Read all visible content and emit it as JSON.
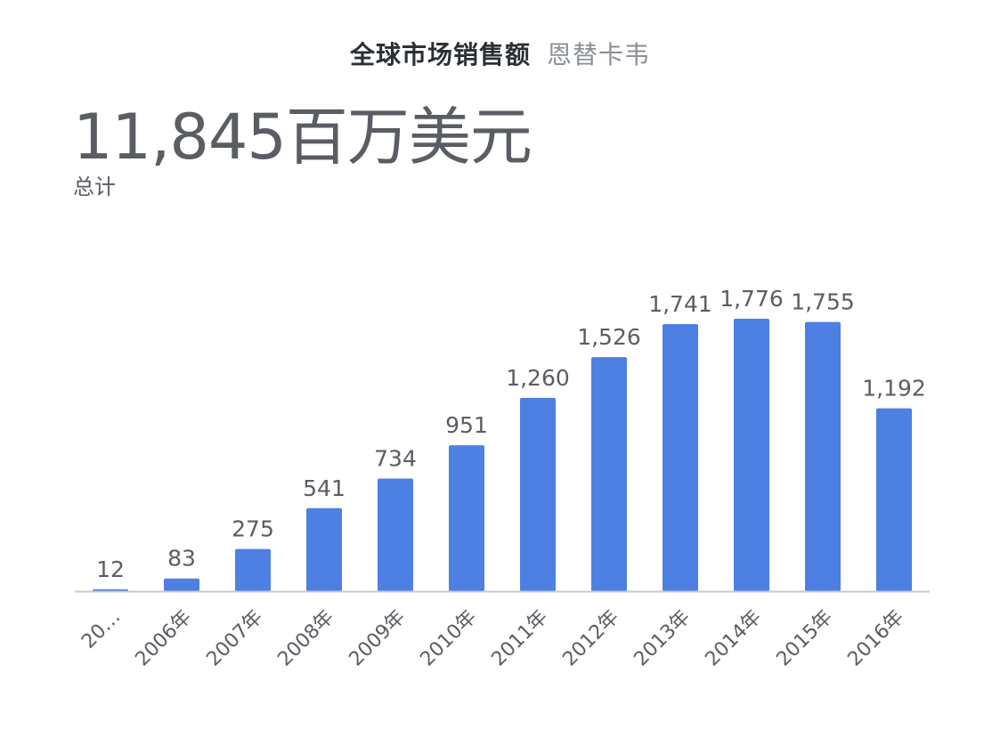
{
  "header": {
    "title": "全球市场销售额",
    "subtitle": "恩替卡韦"
  },
  "summary": {
    "value": "11,845百万美元",
    "label": "总计"
  },
  "colors": {
    "bar": "#4e7fe3",
    "axis": "#c7c9cc",
    "label": "#5a5d63"
  },
  "chart_data": {
    "type": "bar",
    "categories": [
      "20…",
      "2006年",
      "2007年",
      "2008年",
      "2009年",
      "2010年",
      "2011年",
      "2012年",
      "2013年",
      "2014年",
      "2015年",
      "2016年"
    ],
    "values": [
      12,
      83,
      275,
      541,
      734,
      951,
      1260,
      1526,
      1741,
      1776,
      1755,
      1192
    ],
    "value_labels": [
      "12",
      "83",
      "275",
      "541",
      "734",
      "951",
      "1,260",
      "1,526",
      "1,741",
      "1,776",
      "1,755",
      "1,192"
    ],
    "ylim": [
      0,
      1776
    ],
    "grid": false
  }
}
